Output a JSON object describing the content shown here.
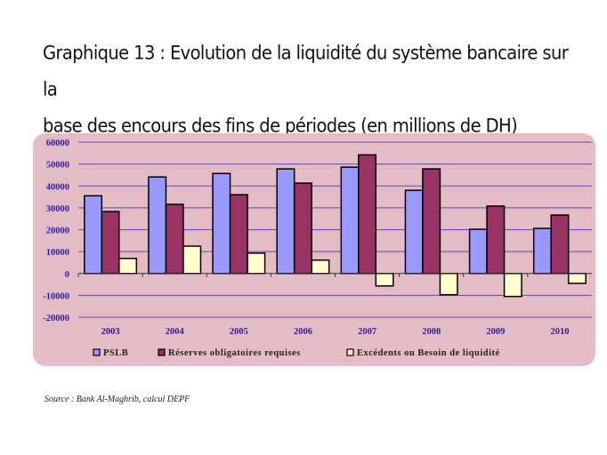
{
  "chart_data": {
    "type": "bar",
    "title": "Graphique 13 : Evolution de la liquidité du système bancaire sur la base des encours des fins de périodes (en millions de DH)",
    "title_lines": [
      "Graphique 13 : Evolution de la liquidité du système bancaire sur la",
      "base des encours des fins de périodes (en millions de DH)"
    ],
    "categories": [
      "2003",
      "2004",
      "2005",
      "2006",
      "2007",
      "2008",
      "2009",
      "2010"
    ],
    "series": [
      {
        "name": "PSLB",
        "color": "#9999ff",
        "values": [
          35500,
          44100,
          45700,
          47800,
          48600,
          38000,
          20200,
          20600
        ]
      },
      {
        "name": "Réserves obligatoires requises",
        "color": "#993366",
        "values": [
          28300,
          31600,
          36000,
          41300,
          54200,
          47800,
          30800,
          26700
        ]
      },
      {
        "name": "Excédents ou Besoin de liquidité",
        "color": "#ffffcc",
        "values": [
          6900,
          12500,
          9300,
          6100,
          -5700,
          -9700,
          -10500,
          -4500
        ]
      }
    ],
    "ylim": [
      -20000,
      60000
    ],
    "yticks": [
      "60000",
      "50000",
      "40000",
      "30000",
      "20000",
      "10000",
      "0",
      "-10000",
      "-20000"
    ],
    "ytick_values": [
      60000,
      50000,
      40000,
      30000,
      20000,
      10000,
      0,
      -10000,
      -20000
    ],
    "grid": true,
    "legend_position": "bottom",
    "xlabel": "",
    "ylabel": ""
  },
  "source": "Source : Bank Al-Maghrib, calcul DEPF"
}
